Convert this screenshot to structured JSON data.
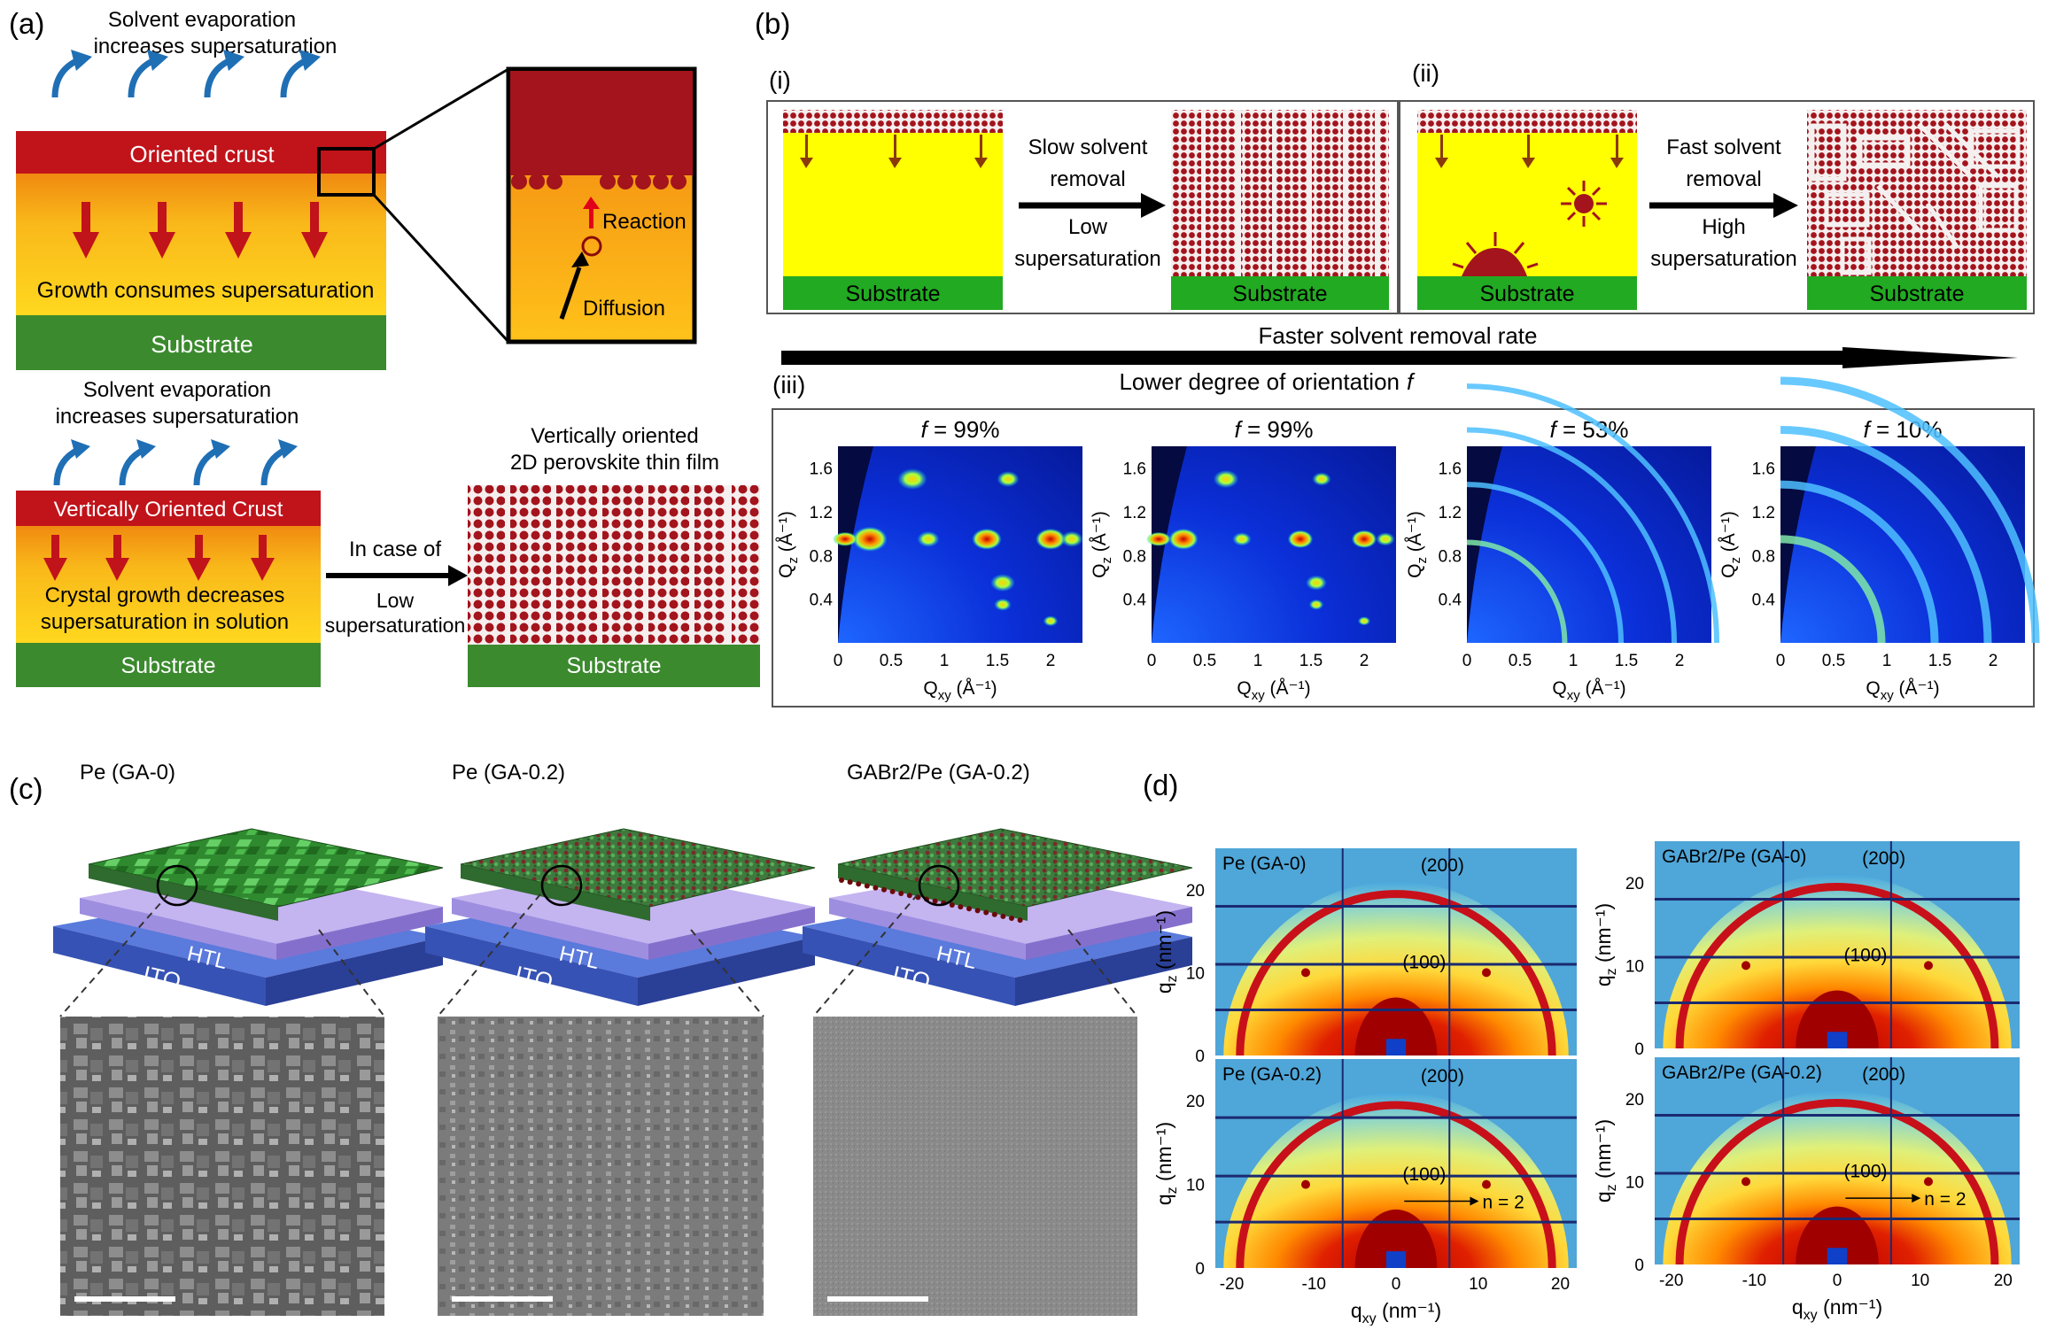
{
  "panel_a": {
    "label": "(a)",
    "top_evap_line1": "Solvent evaporation",
    "top_evap_line2": "increases supersaturation",
    "oriented_crust": "Oriented crust",
    "growth_consumes": "Growth consumes supersaturation",
    "substrate": "Substrate",
    "reaction": "Reaction",
    "diffusion": "Diffusion",
    "bot_evap_line1": "Solvent evaporation",
    "bot_evap_line2": "increases supersaturation",
    "vertical_crust": "Vertically Oriented Crust",
    "crystal_growth_line1": "Crystal growth decreases",
    "crystal_growth_line2": "supersaturation in solution",
    "substrate2": "Substrate",
    "in_case_of": "In case of",
    "low": "Low",
    "supersaturation": "supersaturation",
    "film_title_line1": "Vertically oriented",
    "film_title_line2": "2D perovskite thin film",
    "substrate3": "Substrate"
  },
  "panel_b": {
    "label": "(b)",
    "i_label": "(i)",
    "ii_label": "(ii)",
    "iii_label": "(iii)",
    "slow_line1": "Slow solvent",
    "slow_line2": "removal",
    "low_line1": "Low",
    "low_line2": "supersaturation",
    "fast_line1": "Fast solvent",
    "fast_line2": "removal",
    "high_line1": "High",
    "high_line2": "supersaturation",
    "substrate": "Substrate",
    "faster_rate": "Faster solvent removal rate",
    "lower_orientation": "Lower degree of orientation",
    "f_symbol": "f",
    "plots": [
      {
        "f_label": "f",
        "f_value": " = 99%"
      },
      {
        "f_label": "f",
        "f_value": " = 99%"
      },
      {
        "f_label": "f",
        "f_value": " = 53%"
      },
      {
        "f_label": "f",
        "f_value": " = 10%"
      }
    ],
    "y_ticks": [
      "1.6",
      "1.2",
      "0.8",
      "0.4"
    ],
    "x_ticks": [
      "0",
      "0.5",
      "1",
      "1.5",
      "2"
    ],
    "ylabel_main": "Q",
    "ylabel_sub": "z",
    "ylabel_unit": " (Å⁻¹)",
    "xlabel_main": "Q",
    "xlabel_sub": "xy",
    "xlabel_unit": " (Å⁻¹)"
  },
  "panel_c": {
    "label": "(c)",
    "samples": [
      {
        "title": "Pe (GA-0)",
        "htl": "HTL",
        "ito": "ITO"
      },
      {
        "title": "Pe (GA-0.2)",
        "htl": "HTL",
        "ito": "ITO"
      },
      {
        "title": "GABr2/Pe (GA-0.2)",
        "htl": "HTL",
        "ito": "ITO"
      }
    ]
  },
  "panel_d": {
    "label": "(d)",
    "plots": [
      {
        "title": "Pe (GA-0)",
        "peak200": "(200)",
        "peak100": "(100)",
        "n_label": ""
      },
      {
        "title": "GABr2/Pe (GA-0)",
        "peak200": "(200)",
        "peak100": "(100)",
        "n_label": ""
      },
      {
        "title": "Pe (GA-0.2)",
        "peak200": "(200)",
        "peak100": "(100)",
        "n_label": "n = 2"
      },
      {
        "title": "GABr2/Pe (GA-0.2)",
        "peak200": "(200)",
        "peak100": "(100)",
        "n_label": "n = 2"
      }
    ],
    "y_ticks_top": [
      "20",
      "10",
      "0"
    ],
    "y_ticks_bottom": [
      "20",
      "10",
      "0"
    ],
    "x_ticks": [
      "-20",
      "-10",
      "0",
      "10",
      "20"
    ],
    "ylabel_main": "q",
    "ylabel_sub": "z",
    "ylabel_unit": " (nm⁻¹)",
    "xlabel_main": "q",
    "xlabel_sub": "xy",
    "xlabel_unit": " (nm⁻¹)"
  },
  "colors": {
    "crust": "#c1131a",
    "solution_top": "#f29a14",
    "solution_bottom": "#ffd21a",
    "substrate": "#3b8a2e",
    "arrow_blue": "#1f6fb5",
    "yellow": "#ffff00",
    "green": "#1fa81f"
  }
}
